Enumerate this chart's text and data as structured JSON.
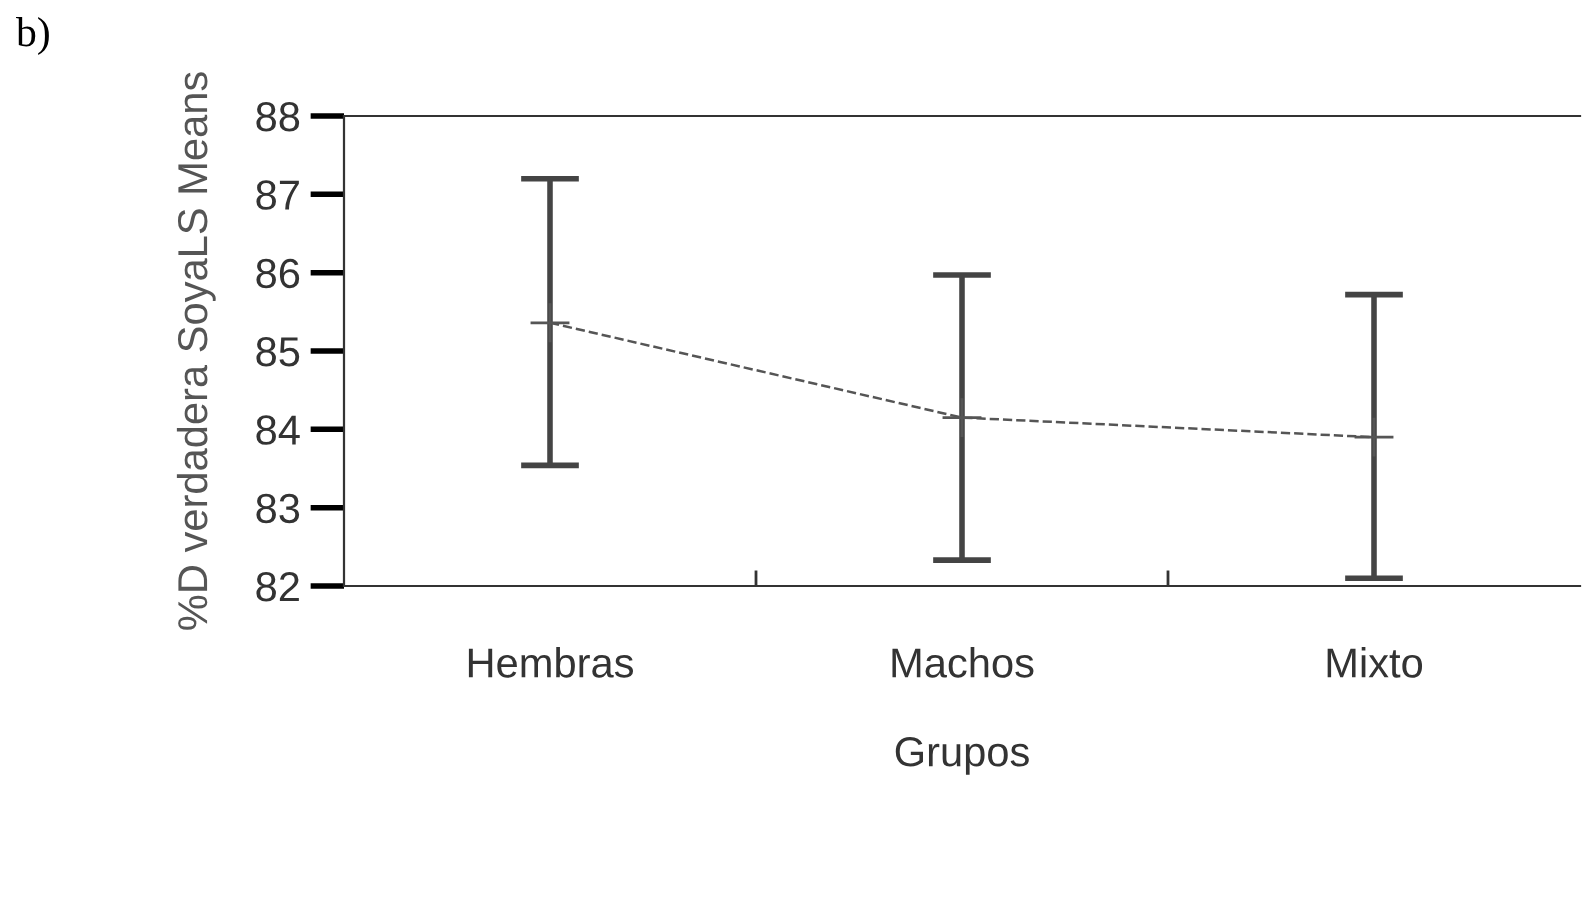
{
  "chart_data": {
    "type": "line",
    "xlabel": "Grupos",
    "ylabel": "%D verdadera SoyaLS Means",
    "categories": [
      "Hembras",
      "Machos",
      "Mixto"
    ],
    "series": [
      {
        "color": "#555555",
        "values": [
          85.36,
          84.15,
          83.9
        ],
        "errors": [
          [
            83.54,
            87.2
          ],
          [
            82.33,
            85.97
          ],
          [
            82.1,
            85.72
          ]
        ]
      }
    ],
    "ylim": [
      82,
      88
    ],
    "yticks": [
      82,
      83,
      84,
      85,
      86,
      87,
      88
    ],
    "marker": "cross",
    "line_style": "dashed",
    "grid": false,
    "legend": false,
    "annotations": [
      "b)"
    ]
  }
}
